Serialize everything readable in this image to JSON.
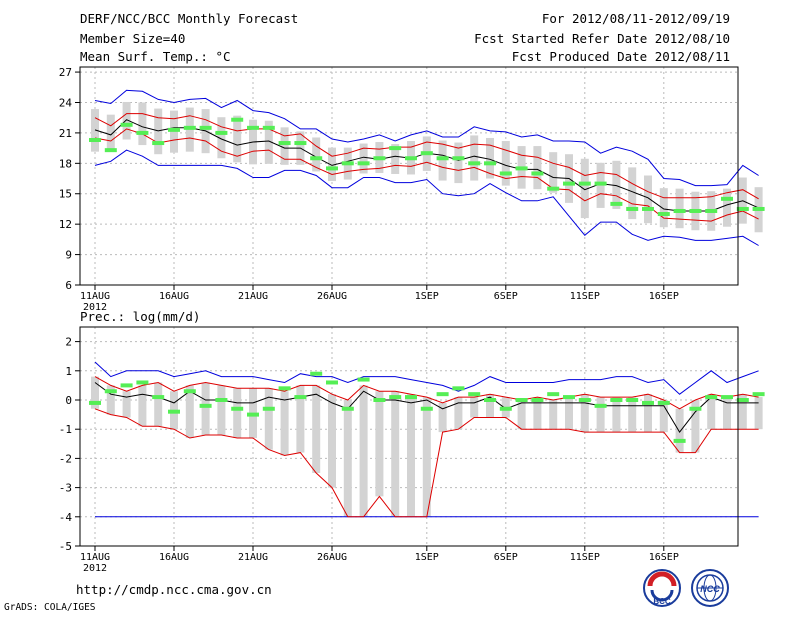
{
  "header": {
    "title": "DERF/NCC/BCC Monthly Forecast",
    "member_size": "Member Size=40",
    "variable": "Mean Surf. Temp.: °C",
    "period": "For 2012/08/11-2012/09/19",
    "started": "Fcst Started Refer Date 2012/08/10",
    "produced": "Fcst Produced Date 2012/08/11"
  },
  "footer": {
    "url": "http://cmdp.ncc.cma.gov.cn",
    "grads": "GrADS: COLA/IGES",
    "logo_bcc": "BCC",
    "logo_ncc": "NCC"
  },
  "colors": {
    "grid": "#bbbbbb",
    "box": "#d3d3d3",
    "obs": "#55ee55",
    "mean": "#000000",
    "inner": "#dd0000",
    "outer": "#0000dd"
  },
  "chart_data": [
    {
      "type": "line",
      "title": "Mean Surf. Temp.: °C",
      "xlabel_year": "2012",
      "x_tick_labels": [
        "11AUG",
        "16AUG",
        "21AUG",
        "26AUG",
        "1SEP",
        "6SEP",
        "11SEP",
        "16SEP"
      ],
      "x_tick_days": [
        0,
        5,
        10,
        15,
        21,
        26,
        31,
        36
      ],
      "ylim": [
        6,
        27.5
      ],
      "yticks": [
        6,
        9,
        12,
        15,
        18,
        21,
        24,
        27
      ],
      "series": [
        {
          "name": "max",
          "values": [
            24.2,
            23.9,
            25.2,
            25.1,
            24.3,
            24.0,
            24.3,
            24.4,
            23.5,
            24.2,
            23.2,
            23.0,
            22.4,
            21.4,
            21.4,
            20.4,
            20.1,
            20.4,
            20.8,
            20.2,
            20.8,
            21.2,
            20.6,
            20.6,
            21.6,
            21.2,
            21.1,
            20.6,
            20.8,
            20.2,
            20.2,
            20.1,
            19.0,
            19.6,
            19.2,
            18.4,
            16.5,
            16.4,
            15.8,
            15.8,
            15.9,
            17.8,
            16.8
          ]
        },
        {
          "name": "upper",
          "values": [
            22.5,
            21.7,
            22.9,
            22.9,
            22.5,
            22.4,
            22.7,
            22.3,
            21.6,
            21.2,
            21.4,
            21.4,
            20.7,
            20.9,
            19.7,
            18.7,
            19.0,
            19.5,
            19.4,
            19.6,
            19.6,
            20.1,
            19.9,
            19.5,
            19.9,
            19.8,
            19.3,
            18.8,
            18.6,
            18.0,
            17.6,
            16.8,
            17.1,
            16.9,
            16.0,
            15.2,
            14.6,
            14.6,
            14.6,
            14.7,
            15.1,
            15.4,
            14.5
          ]
        },
        {
          "name": "mean",
          "values": [
            21.3,
            20.8,
            22.3,
            21.6,
            21.2,
            21.5,
            21.5,
            21.2,
            20.4,
            19.8,
            20.1,
            20.2,
            19.5,
            19.5,
            18.6,
            17.8,
            18.2,
            18.6,
            18.4,
            18.7,
            18.5,
            19.0,
            18.8,
            18.3,
            18.7,
            18.4,
            17.8,
            17.4,
            17.4,
            16.6,
            16.5,
            15.4,
            16.0,
            15.8,
            15.2,
            14.6,
            13.5,
            13.3,
            13.3,
            13.3,
            13.9,
            14.3,
            13.6
          ]
        },
        {
          "name": "lower",
          "values": [
            20.5,
            20.2,
            21.4,
            20.9,
            20.0,
            20.3,
            20.5,
            20.2,
            19.2,
            18.7,
            19.2,
            19.3,
            18.4,
            18.4,
            17.6,
            16.9,
            17.2,
            17.4,
            17.5,
            17.8,
            17.7,
            18.1,
            17.6,
            17.3,
            17.6,
            17.0,
            16.5,
            16.7,
            16.6,
            15.5,
            15.4,
            14.3,
            15.0,
            14.8,
            14.0,
            13.8,
            12.6,
            12.5,
            12.4,
            12.3,
            12.9,
            13.3,
            12.5
          ]
        },
        {
          "name": "min",
          "values": [
            17.8,
            18.2,
            19.3,
            18.7,
            17.8,
            17.8,
            17.8,
            17.8,
            17.8,
            17.5,
            16.6,
            16.6,
            17.3,
            17.3,
            16.8,
            15.6,
            15.6,
            16.6,
            16.6,
            16.1,
            16.1,
            16.4,
            15.0,
            14.8,
            15.0,
            16.0,
            15.1,
            14.3,
            14.3,
            14.7,
            12.8,
            10.9,
            12.2,
            12.2,
            11.0,
            10.4,
            10.8,
            10.7,
            10.4,
            10.4,
            10.6,
            10.8,
            9.9
          ]
        },
        {
          "name": "observed",
          "values": [
            20.3,
            19.3,
            21.8,
            21.0,
            20.0,
            21.3,
            21.5,
            21.5,
            21.0,
            22.3,
            21.5,
            21.5,
            20.0,
            20.0,
            18.5,
            17.5,
            18.0,
            18.0,
            18.5,
            19.5,
            18.5,
            19.0,
            18.5,
            18.5,
            18.0,
            18.0,
            17.0,
            17.5,
            17.0,
            15.5,
            16.0,
            16.0,
            16.0,
            14.0,
            13.5,
            13.5,
            13.0,
            13.3,
            13.3,
            13.3,
            14.5,
            13.5,
            13.5
          ]
        }
      ]
    },
    {
      "type": "line",
      "title": "Prec.: log(mm/d)",
      "xlabel_year": "2012",
      "x_tick_labels": [
        "11AUG",
        "16AUG",
        "21AUG",
        "26AUG",
        "1SEP",
        "6SEP",
        "11SEP",
        "16SEP"
      ],
      "x_tick_days": [
        0,
        5,
        10,
        15,
        21,
        26,
        31,
        36
      ],
      "ylim": [
        -5,
        2.5
      ],
      "yticks": [
        -5,
        -4,
        -3,
        -2,
        -1,
        0,
        1,
        2
      ],
      "series": [
        {
          "name": "max",
          "values": [
            1.3,
            0.8,
            1.0,
            1.0,
            1.0,
            0.8,
            0.9,
            1.0,
            0.8,
            0.8,
            0.8,
            0.7,
            0.6,
            0.9,
            0.8,
            0.8,
            0.6,
            0.8,
            0.8,
            0.8,
            0.7,
            0.6,
            0.5,
            0.3,
            0.5,
            0.8,
            0.6,
            0.6,
            0.6,
            0.6,
            0.7,
            0.7,
            0.7,
            0.8,
            0.8,
            0.6,
            0.7,
            0.2,
            0.6,
            1.0,
            0.6,
            0.8,
            1.0
          ]
        },
        {
          "name": "upper",
          "values": [
            0.8,
            0.5,
            0.3,
            0.5,
            0.6,
            0.3,
            0.5,
            0.6,
            0.5,
            0.4,
            0.4,
            0.4,
            0.3,
            0.5,
            0.5,
            0.2,
            0.0,
            0.5,
            0.3,
            0.3,
            0.2,
            0.1,
            -0.1,
            0.1,
            0.1,
            0.2,
            0.1,
            0.0,
            0.1,
            0.0,
            0.1,
            0.2,
            0.1,
            0.1,
            0.1,
            0.2,
            0.0,
            -0.3,
            0.0,
            0.2,
            0.1,
            0.2,
            0.1
          ]
        },
        {
          "name": "mean",
          "values": [
            0.6,
            0.2,
            0.1,
            0.2,
            0.1,
            -0.1,
            0.3,
            0.0,
            0.0,
            -0.1,
            -0.1,
            0.1,
            0.0,
            0.1,
            0.2,
            -0.1,
            -0.3,
            0.3,
            0.0,
            0.0,
            -0.1,
            0.0,
            -0.3,
            -0.1,
            -0.1,
            0.1,
            -0.3,
            -0.1,
            -0.1,
            -0.1,
            -0.1,
            -0.1,
            -0.2,
            -0.2,
            -0.2,
            -0.2,
            -0.2,
            -1.1,
            -0.4,
            0.1,
            -0.1,
            -0.1,
            -0.1
          ]
        },
        {
          "name": "lower",
          "values": [
            -0.3,
            -0.5,
            -0.6,
            -0.9,
            -0.9,
            -1.0,
            -1.3,
            -1.2,
            -1.2,
            -1.3,
            -1.3,
            -1.7,
            -1.9,
            -1.8,
            -2.5,
            -3.0,
            -4.0,
            -4.0,
            -3.3,
            -4.0,
            -4.0,
            -4.0,
            -1.1,
            -1.0,
            -0.6,
            -0.6,
            -0.6,
            -1.0,
            -1.0,
            -1.0,
            -1.0,
            -1.1,
            -1.1,
            -1.1,
            -1.1,
            -1.1,
            -1.1,
            -1.8,
            -1.8,
            -1.0,
            -1.0,
            -1.0,
            -1.0
          ]
        },
        {
          "name": "min",
          "values": [
            -4,
            -4,
            -4,
            -4,
            -4,
            -4,
            -4,
            -4,
            -4,
            -4,
            -4,
            -4,
            -4,
            -4,
            -4,
            -4,
            -4,
            -4,
            -4,
            -4,
            -4,
            -4,
            -4,
            -4,
            -4,
            -4,
            -4,
            -4,
            -4,
            -4,
            -4,
            -4,
            -4,
            -4,
            -4,
            -4,
            -4,
            -4,
            -4,
            -4,
            -4,
            -4,
            -4
          ]
        },
        {
          "name": "observed",
          "values": [
            -0.1,
            0.3,
            0.5,
            0.6,
            0.1,
            -0.4,
            0.3,
            -0.2,
            0.0,
            -0.3,
            -0.5,
            -0.3,
            0.4,
            0.1,
            0.9,
            0.6,
            -0.3,
            0.7,
            0.0,
            0.1,
            0.1,
            -0.3,
            0.2,
            0.4,
            0.2,
            0.0,
            -0.3,
            0.0,
            0.0,
            0.2,
            0.1,
            0.0,
            -0.2,
            0.0,
            0.0,
            -0.1,
            -0.1,
            -1.4,
            -0.3,
            0.1,
            0.1,
            0.0,
            0.2
          ]
        }
      ]
    }
  ]
}
